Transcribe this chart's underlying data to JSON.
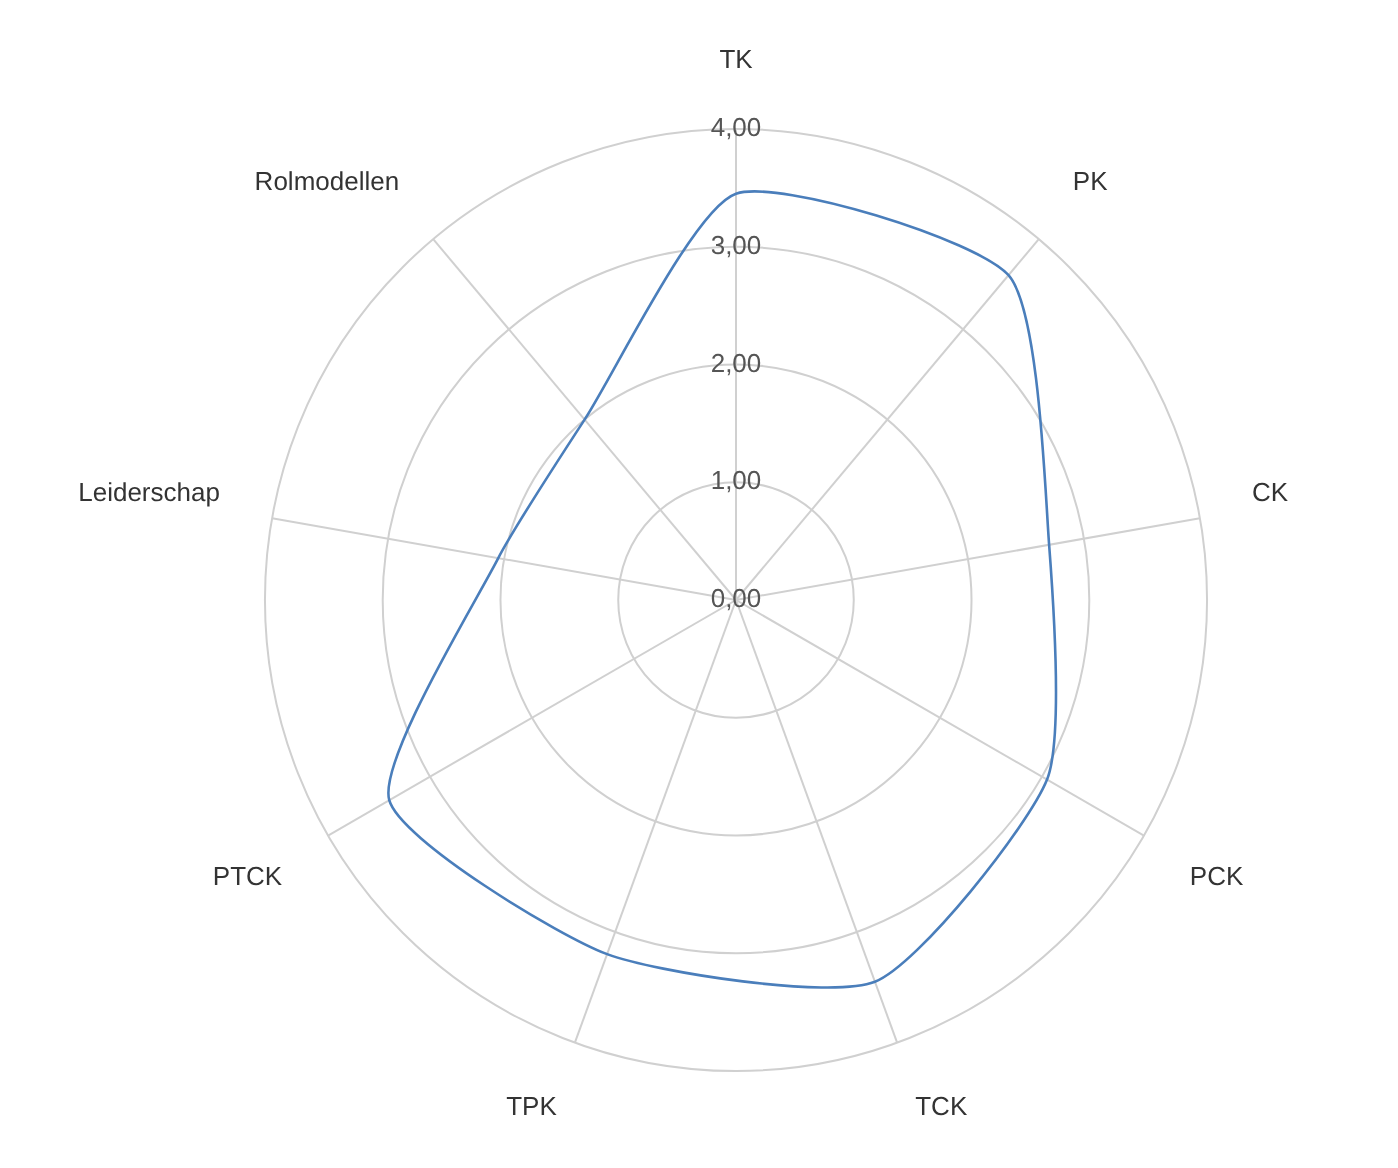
{
  "chart_data": {
    "type": "radar",
    "categories": [
      "TK",
      "PK",
      "CK",
      "PCK",
      "TCK",
      "TPK",
      "PTCK",
      "Leiderschap",
      "Rolmodellen"
    ],
    "series": [
      {
        "color": "#4a7ebb",
        "values": [
          3.45,
          3.6,
          2.7,
          3.05,
          3.45,
          3.2,
          3.4,
          2.05,
          2.0
        ]
      }
    ],
    "ylim": [
      0,
      4
    ],
    "yticks": [
      {
        "value": 0,
        "label": "0,00"
      },
      {
        "value": 1,
        "label": "1,00"
      },
      {
        "value": 2,
        "label": "2,00"
      },
      {
        "value": 3,
        "label": "3,00"
      },
      {
        "value": 4,
        "label": "4,00"
      }
    ],
    "grid": true,
    "legend": false,
    "marker": "none",
    "line_style": "solid"
  }
}
